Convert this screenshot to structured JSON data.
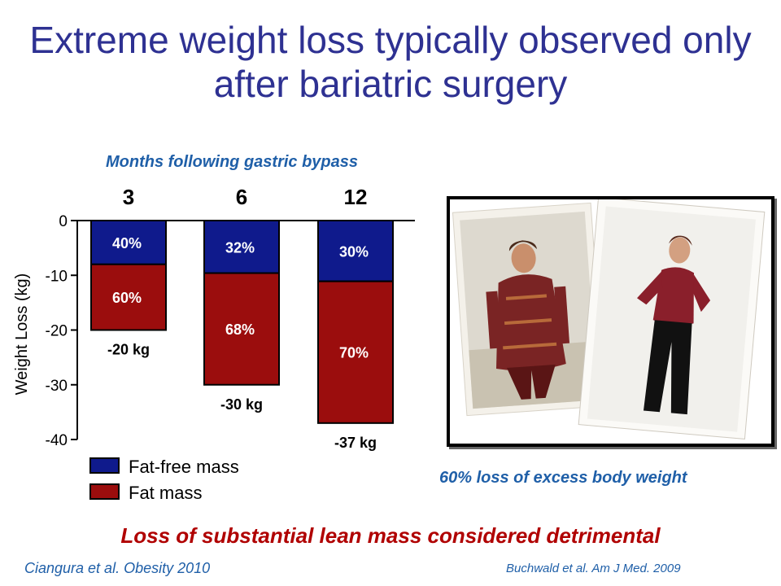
{
  "slide": {
    "title": "Extreme weight loss typically observed only after bariatric surgery",
    "photo_caption": "60% loss of excess body weight",
    "conclusion": "Loss of substantial lean mass considered detrimental",
    "citation_left": "Ciangura et al. Obesity 2010",
    "citation_right": "Buchwald et al. Am J Med. 2009"
  },
  "colors": {
    "title": "#2e3192",
    "subtitle": "#1f5fa8",
    "fat_free": "#0f1a8c",
    "fat": "#9b0d0d",
    "conclusion": "#b00000"
  },
  "chart_data": {
    "type": "bar",
    "stacked": true,
    "title": "Months following gastric bypass",
    "ylabel": "Weight Loss (kg)",
    "ylim": [
      -40,
      0
    ],
    "yticks": [
      "0",
      "-10",
      "-20",
      "-30",
      "-40"
    ],
    "ytick_values": [
      0,
      -10,
      -20,
      -30,
      -40
    ],
    "categories": [
      "3",
      "6",
      "12"
    ],
    "totals": [
      -20,
      -30,
      -37
    ],
    "total_labels": [
      "-20 kg",
      "-30 kg",
      "-37 kg"
    ],
    "series": [
      {
        "name": "Fat-free mass",
        "color": "#0f1a8c",
        "percent_labels": [
          "40%",
          "32%",
          "30%"
        ],
        "fractions": [
          0.4,
          0.32,
          0.3
        ]
      },
      {
        "name": "Fat mass",
        "color": "#9b0d0d",
        "percent_labels": [
          "60%",
          "68%",
          "70%"
        ],
        "fractions": [
          0.6,
          0.68,
          0.7
        ]
      }
    ],
    "legend_position": "bottom-left"
  }
}
